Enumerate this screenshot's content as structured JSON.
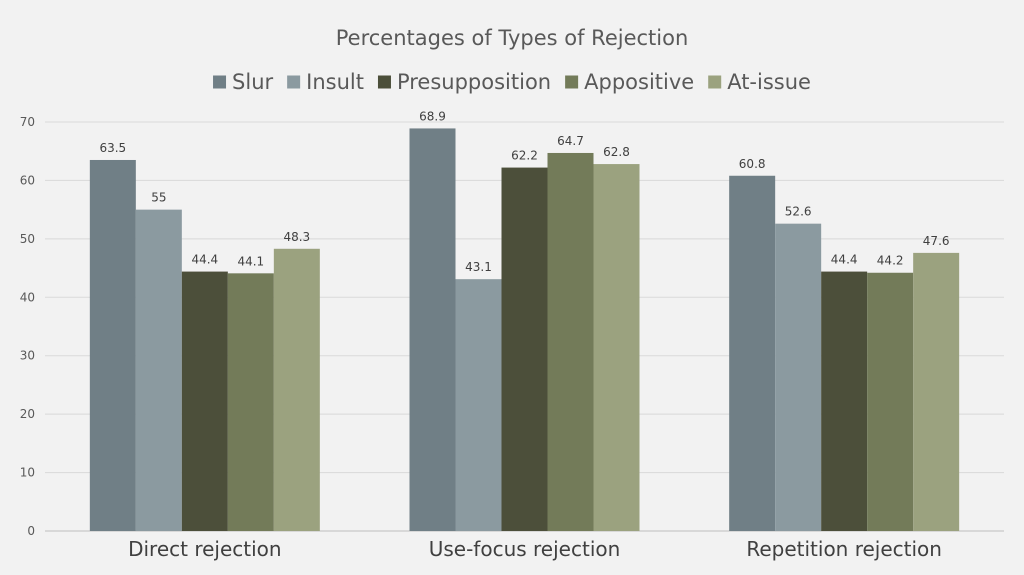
{
  "chart_data": {
    "type": "bar",
    "title": "Percentages of Types of Rejection",
    "categories": [
      "Direct rejection",
      "Use-focus rejection",
      "Repetition rejection"
    ],
    "series": [
      {
        "name": "Slur",
        "color": "#707f86",
        "values": [
          63.5,
          68.9,
          60.8
        ]
      },
      {
        "name": "Insult",
        "color": "#8b9aa0",
        "values": [
          55,
          43.1,
          52.6
        ]
      },
      {
        "name": "Presupposition",
        "color": "#4c4f3a",
        "values": [
          44.4,
          62.2,
          44.4
        ]
      },
      {
        "name": "Appositive",
        "color": "#737b59",
        "values": [
          44.1,
          64.7,
          44.2
        ]
      },
      {
        "name": "At-issue",
        "color": "#9ba27f",
        "values": [
          48.3,
          62.8,
          47.6
        ]
      }
    ],
    "yticks": [
      0,
      10,
      20,
      30,
      40,
      50,
      60,
      70
    ],
    "ylim": [
      0,
      70
    ],
    "legend_position": "top",
    "grid": true
  }
}
